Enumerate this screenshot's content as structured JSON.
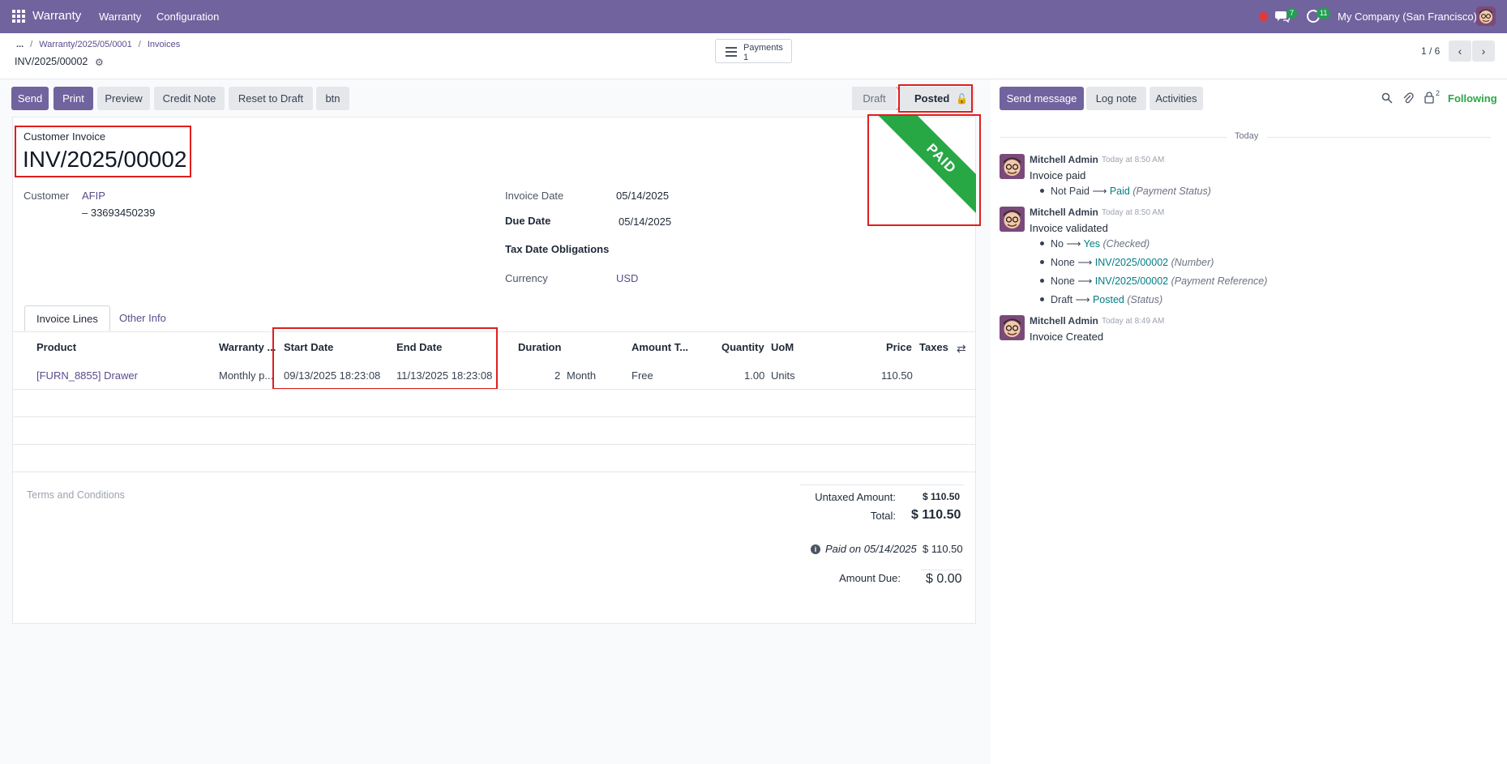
{
  "navbar": {
    "app_name": "Warranty",
    "menu": [
      "Warranty",
      "Configuration"
    ],
    "chat_count": "7",
    "activity_count": "11",
    "company": "My Company (San Francisco)"
  },
  "control_panel": {
    "breadcrumb": [
      "...",
      "Warranty/2025/05/0001",
      "Invoices"
    ],
    "record_name": "INV/2025/00002",
    "payments_label": "Payments",
    "payments_count": "1",
    "pager": "1 / 6"
  },
  "actions": {
    "send": "Send",
    "print": "Print",
    "preview": "Preview",
    "credit_note": "Credit Note",
    "reset_to_draft": "Reset to Draft",
    "btn": "btn"
  },
  "status": {
    "draft": "Draft",
    "posted": "Posted"
  },
  "invoice": {
    "type_label": "Customer Invoice",
    "number": "INV/2025/00002",
    "ribbon": "PAID",
    "customer_label": "Customer",
    "customer_name": "AFIP",
    "customer_vat": "– 33693450239",
    "invoice_date_label": "Invoice Date",
    "invoice_date": "05/14/2025",
    "due_date_label": "Due Date",
    "due_date": "05/14/2025",
    "tax_date_label": "Tax Date Obligations",
    "currency_label": "Currency",
    "currency": "USD"
  },
  "tabs": [
    "Invoice Lines",
    "Other Info"
  ],
  "lines": {
    "headers": [
      "Product",
      "Warranty ...",
      "Start Date",
      "End Date",
      "Duration",
      "Amount T...",
      "Quantity",
      "UoM",
      "Price",
      "Taxes"
    ],
    "rows": [
      {
        "product": "[FURN_8855] Drawer",
        "warranty": "Monthly p...",
        "start_date": "09/13/2025 18:23:08",
        "end_date": "11/13/2025 18:23:08",
        "duration": "2",
        "duration_unit": "Month",
        "amount_type": "Free",
        "quantity": "1.00",
        "uom": "Units",
        "price": "110.50",
        "taxes": ""
      }
    ]
  },
  "terms_placeholder": "Terms and Conditions",
  "totals": {
    "untaxed_label": "Untaxed Amount:",
    "untaxed": "$ 110.50",
    "total_label": "Total:",
    "total": "$ 110.50",
    "paid_label": "Paid on 05/14/2025",
    "paid": "$ 110.50",
    "due_label": "Amount Due:",
    "due": "$ 0.00"
  },
  "chatter": {
    "send_message": "Send message",
    "log_note": "Log note",
    "activities": "Activities",
    "followers_count": "2",
    "following": "Following",
    "today": "Today",
    "messages": [
      {
        "author": "Mitchell Admin",
        "time": "Today at 8:50 AM",
        "body": "Invoice paid",
        "tracking": [
          {
            "old": "Not Paid",
            "new": "Paid",
            "field": "(Payment Status)"
          }
        ]
      },
      {
        "author": "Mitchell Admin",
        "time": "Today at 8:50 AM",
        "body": "Invoice validated",
        "tracking": [
          {
            "old": "No",
            "new": "Yes",
            "field": "(Checked)"
          },
          {
            "old": "None",
            "new": "INV/2025/00002",
            "field": "(Number)"
          },
          {
            "old": "None",
            "new": "INV/2025/00002",
            "field": "(Payment Reference)"
          },
          {
            "old": "Draft",
            "new": "Posted",
            "field": "(Status)"
          }
        ]
      },
      {
        "author": "Mitchell Admin",
        "time": "Today at 8:49 AM",
        "body": "Invoice Created",
        "tracking": []
      }
    ]
  }
}
